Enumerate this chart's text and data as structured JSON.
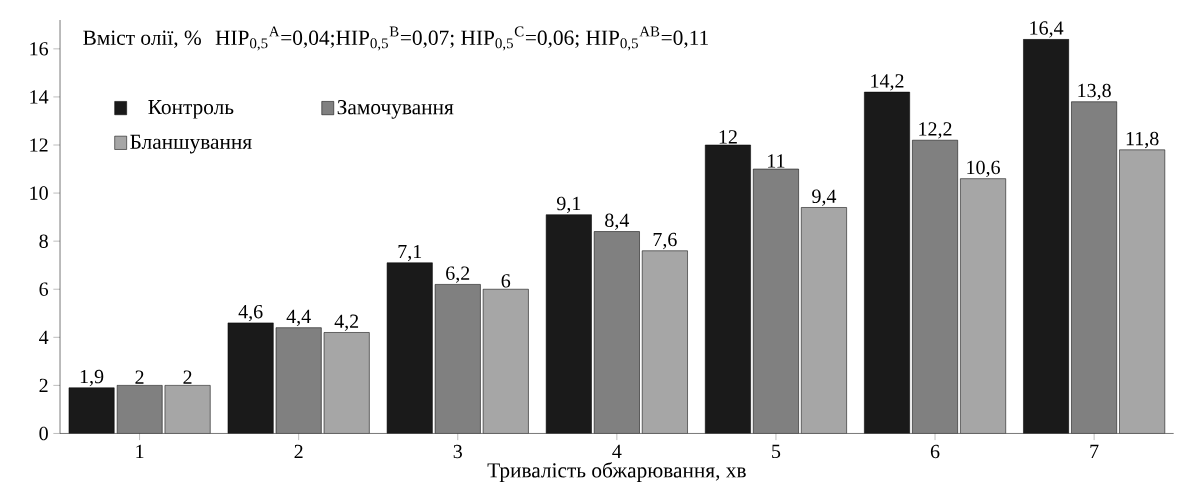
{
  "chart_data": {
    "type": "bar",
    "ylabel": "Вміст олії, %",
    "xlabel": "Тривалість обжарювання, хв",
    "annotations": [
      "НІР$_{0,5}$$^{A}$=0,04;НІР$_{0,5}$$^{B}$=0,07; НІР$_{0,5}$$^{C}$=0,06; НІР$_{0,5}$$^{AB}$=0,11"
    ],
    "categories": [
      "1",
      "2",
      "3",
      "4",
      "5",
      "6",
      "7"
    ],
    "series": [
      {
        "name": "Контроль",
        "color": "#1a1a1a",
        "values": [
          1.9,
          4.6,
          7.1,
          9.1,
          12,
          14.2,
          16.4
        ],
        "value_labels": [
          "1,9",
          "4,6",
          "7,1",
          "9,1",
          "12",
          "14,2",
          "16,4"
        ]
      },
      {
        "name": "Замочування",
        "color": "#808080",
        "values": [
          2,
          4.4,
          6.2,
          8.4,
          11,
          12.2,
          13.8
        ],
        "value_labels": [
          "2",
          "4,4",
          "6,2",
          "8,4",
          "11",
          "12,2",
          "13,8"
        ]
      },
      {
        "name": "Бланшування",
        "color": "#a6a6a6",
        "values": [
          2,
          4.2,
          6,
          7.6,
          9.4,
          10.6,
          11.8
        ],
        "value_labels": [
          "2",
          "4,2",
          "6",
          "7,6",
          "9,4",
          "10,6",
          "11,8"
        ]
      }
    ],
    "ylim": [
      0,
      17.2
    ],
    "yticks": [
      0,
      2,
      4,
      6,
      8,
      10,
      12,
      14,
      16
    ],
    "grid": false,
    "legend": "top left"
  }
}
